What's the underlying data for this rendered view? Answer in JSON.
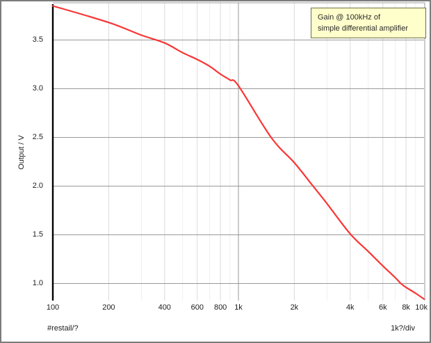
{
  "legend": {
    "line1": "Gain @ 100kHz of",
    "line2": "simple differential amplifier"
  },
  "axes": {
    "y_label": "Output / V",
    "bottom_left_annotation": "#restail/?",
    "bottom_right_annotation": "1k?/div"
  },
  "colors": {
    "curve": "#f93535",
    "grid_major": "#999999",
    "grid_minor": "#dadada",
    "grid_faint": "#efefef",
    "axis": "#000000",
    "plot_border": "#9a9a9a",
    "legend_bg": "#ffffcc",
    "legend_border": "#70703c"
  },
  "chart_data": {
    "type": "line",
    "title": "Gain @ 100kHz of simple differential amplifier",
    "xlabel": "#restail/?",
    "ylabel": "Output / V",
    "x_scale": "log",
    "xlim": [
      100,
      10000
    ],
    "ylim": [
      0.825,
      3.882
    ],
    "x_div_note": "1k?/div",
    "grid": true,
    "legend_position": "top-right",
    "series": [
      {
        "name": "Output",
        "color": "#f93535",
        "x": [
          100,
          200,
          300,
          400,
          500,
          600,
          700,
          800,
          900,
          1000,
          1500,
          2000,
          2500,
          3000,
          4000,
          5000,
          6000,
          7000,
          7500,
          8000,
          9000,
          10000
        ],
        "values": [
          3.85,
          3.68,
          3.55,
          3.47,
          3.37,
          3.3,
          3.23,
          3.15,
          3.09,
          3.03,
          2.5,
          2.24,
          2.01,
          1.82,
          1.51,
          1.33,
          1.18,
          1.06,
          1.0,
          0.96,
          0.9,
          0.84
        ]
      }
    ],
    "x_ticks": [
      {
        "v": 100,
        "label": "100"
      },
      {
        "v": 200,
        "label": "200"
      },
      {
        "v": 400,
        "label": "400"
      },
      {
        "v": 600,
        "label": "600"
      },
      {
        "v": 800,
        "label": "800"
      },
      {
        "v": 1000,
        "label": "1k"
      },
      {
        "v": 2000,
        "label": "2k"
      },
      {
        "v": 4000,
        "label": "4k"
      },
      {
        "v": 6000,
        "label": "6k"
      },
      {
        "v": 8000,
        "label": "8k"
      },
      {
        "v": 10000,
        "label": "10k"
      }
    ],
    "y_ticks": [
      {
        "v": 3.5,
        "label": "3.5"
      },
      {
        "v": 3.0,
        "label": "3.0"
      },
      {
        "v": 2.5,
        "label": "2.5"
      },
      {
        "v": 2.0,
        "label": "2.0"
      },
      {
        "v": 1.5,
        "label": "1.5"
      },
      {
        "v": 1.0,
        "label": "1.0"
      }
    ],
    "x_grid_major": [
      1000
    ],
    "x_grid_minor": [
      200,
      400,
      600,
      800,
      2000,
      4000,
      6000,
      8000
    ],
    "x_grid_faint": [
      300,
      500,
      700,
      900,
      3000,
      5000,
      7000,
      9000
    ]
  }
}
